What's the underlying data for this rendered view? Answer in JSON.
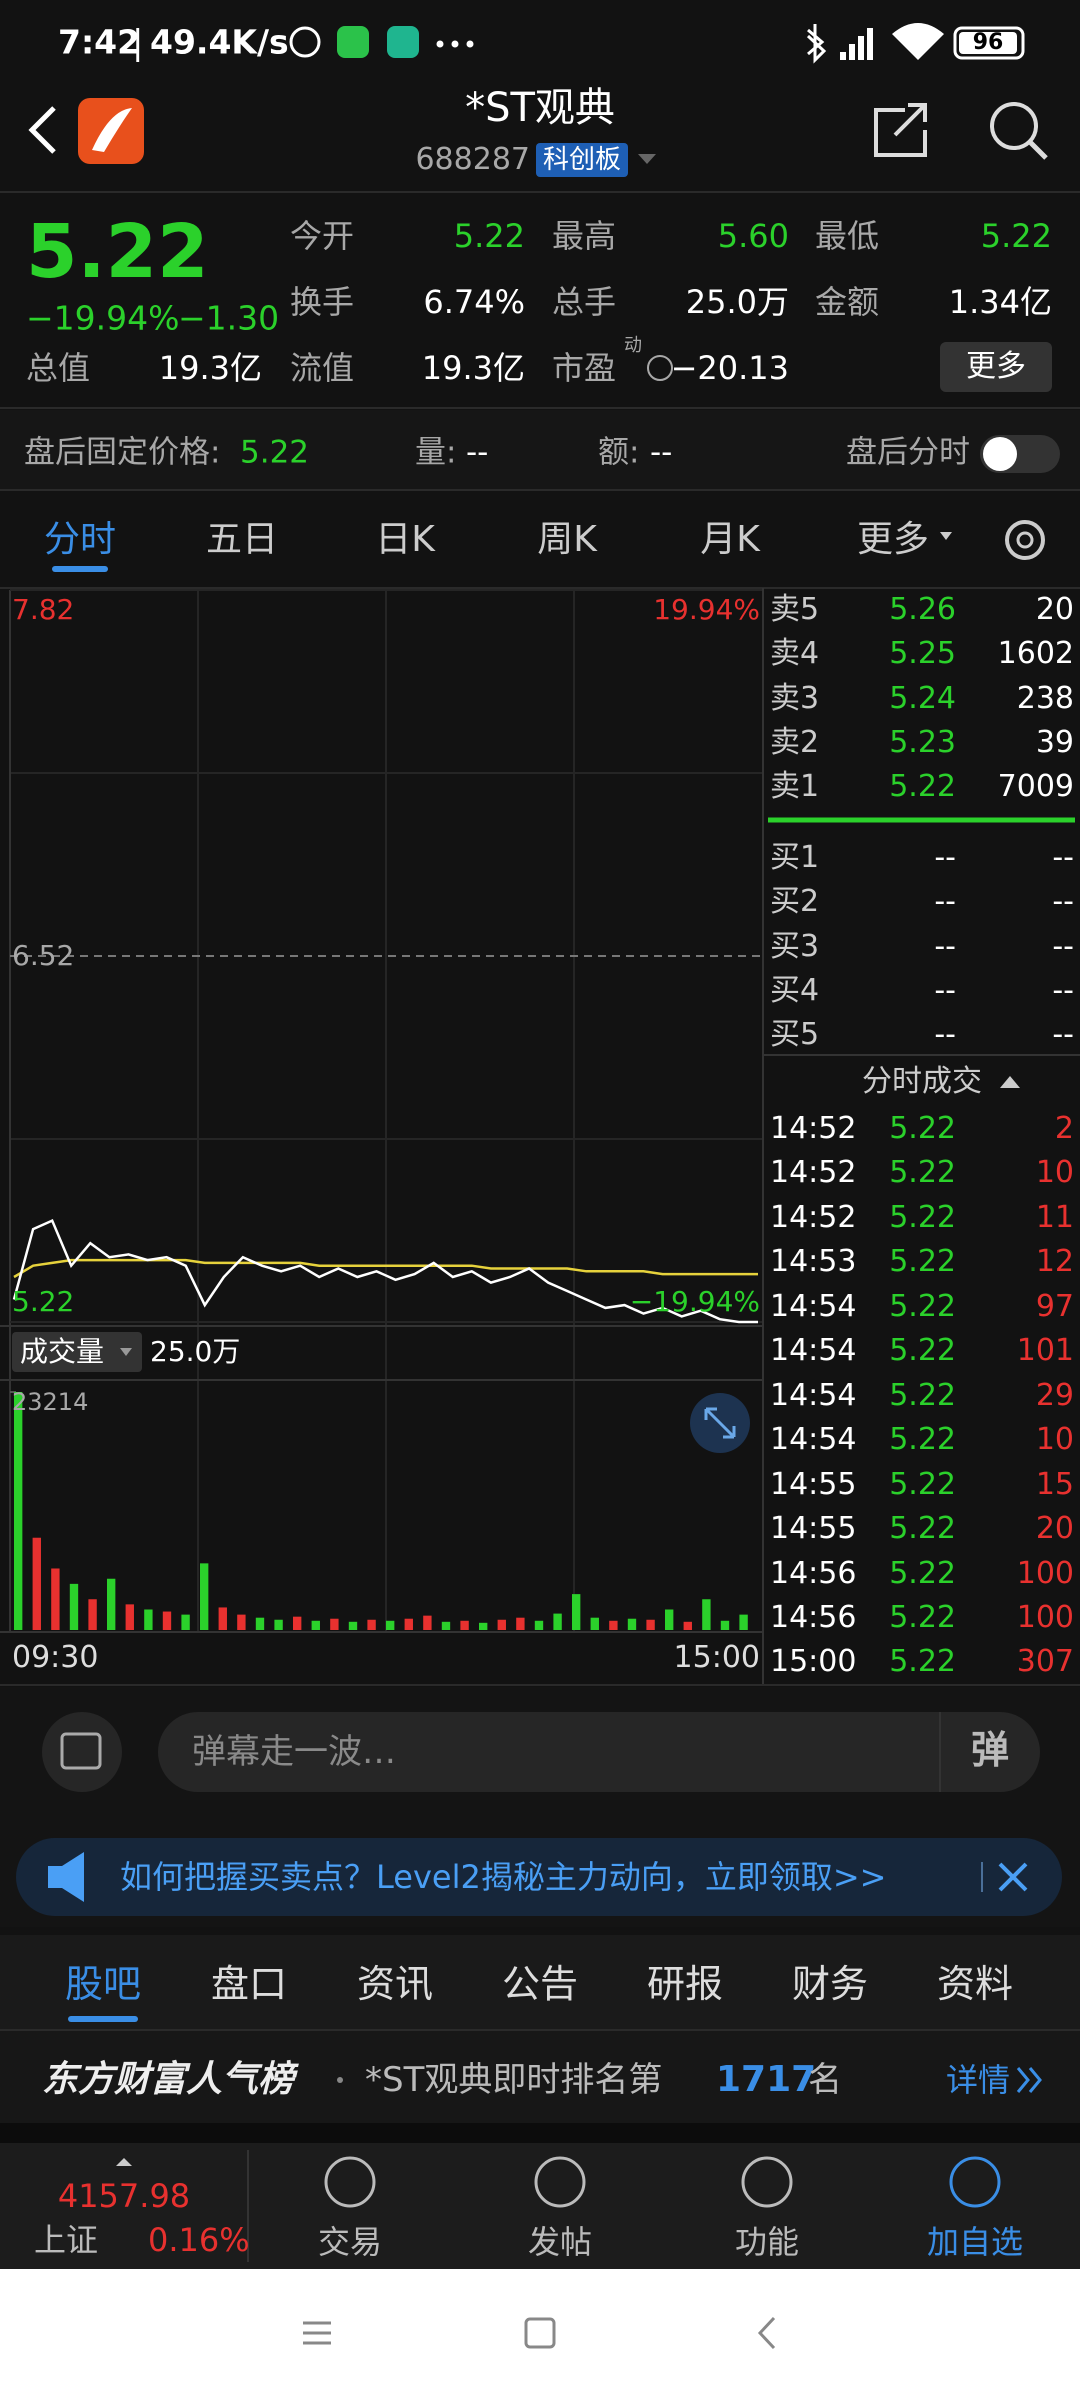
{
  "status_bar": {
    "time": "7:42",
    "speed": "49.4K/s",
    "battery": "96"
  },
  "header": {
    "title": "*ST观典",
    "code": "688287",
    "board": "科创板"
  },
  "quote": {
    "price": "5.22",
    "change_pct": "−19.94%",
    "change": "−1.30",
    "fields": [
      {
        "label": "今开",
        "value": "5.22"
      },
      {
        "label": "最高",
        "value": "5.60"
      },
      {
        "label": "最低",
        "value": "5.22"
      },
      {
        "label": "换手",
        "value": "6.74%"
      },
      {
        "label": "总手",
        "value": "25.0万"
      },
      {
        "label": "金额",
        "value": "1.34亿"
      },
      {
        "label": "总值",
        "value": "19.3亿"
      },
      {
        "label": "流值",
        "value": "19.3亿"
      },
      {
        "label": "市盈",
        "value": "−20.13"
      }
    ],
    "pe_superscript": "动",
    "more": "更多"
  },
  "after_hours": {
    "price_label": "盘后固定价格:",
    "price": "5.22",
    "volume_label": "量:",
    "volume": "--",
    "amount_label": "额:",
    "amount": "--",
    "toggle_label": "盘后分时"
  },
  "chart_tabs": [
    "分时",
    "五日",
    "日K",
    "周K",
    "月K",
    "更多"
  ],
  "chart_data": [
    {
      "type": "line",
      "ylim": [
        5.22,
        7.82
      ],
      "yticks": [
        5.22,
        6.52,
        7.82
      ],
      "pct_top": "19.94%",
      "pct_bottom": "−19.94%",
      "price_color": "#ffffff",
      "average_color": "#e6d23c",
      "price": [
        5.3,
        5.55,
        5.58,
        5.42,
        5.5,
        5.45,
        5.46,
        5.44,
        5.45,
        5.42,
        5.28,
        5.38,
        5.45,
        5.42,
        5.4,
        5.42,
        5.38,
        5.41,
        5.38,
        5.4,
        5.37,
        5.39,
        5.43,
        5.38,
        5.4,
        5.36,
        5.38,
        5.41,
        5.36,
        5.33,
        5.3,
        5.27,
        5.28,
        5.25,
        5.27,
        5.24,
        5.26,
        5.23,
        5.22,
        5.22
      ],
      "average": [
        5.38,
        5.42,
        5.43,
        5.44,
        5.44,
        5.44,
        5.44,
        5.44,
        5.44,
        5.44,
        5.43,
        5.43,
        5.43,
        5.43,
        5.43,
        5.43,
        5.42,
        5.42,
        5.42,
        5.42,
        5.42,
        5.42,
        5.42,
        5.42,
        5.42,
        5.41,
        5.41,
        5.41,
        5.41,
        5.41,
        5.4,
        5.4,
        5.4,
        5.4,
        5.39,
        5.39,
        5.39,
        5.39,
        5.39,
        5.39
      ]
    },
    {
      "type": "bar",
      "label": "成交量",
      "total": "25.0万",
      "ylim": [
        0,
        23214
      ],
      "yticks": [
        23214
      ],
      "up_color": "#e8312f",
      "down_color": "#2bd12b",
      "x_labels": [
        "09:30",
        "15:00"
      ],
      "values": [
        23214,
        9000,
        6000,
        4500,
        3000,
        5000,
        2500,
        2000,
        1800,
        1500,
        6500,
        2200,
        1500,
        1200,
        1000,
        1300,
        900,
        1100,
        800,
        1000,
        900,
        1100,
        1400,
        800,
        900,
        700,
        1000,
        1200,
        900,
        1600,
        3500,
        1200,
        900,
        1100,
        1000,
        2000,
        800,
        3000,
        900,
        1500
      ]
    }
  ],
  "order_book": {
    "asks": [
      {
        "label": "卖5",
        "price": "5.26",
        "volume": "20"
      },
      {
        "label": "卖4",
        "price": "5.25",
        "volume": "1602"
      },
      {
        "label": "卖3",
        "price": "5.24",
        "volume": "238"
      },
      {
        "label": "卖2",
        "price": "5.23",
        "volume": "39"
      },
      {
        "label": "卖1",
        "price": "5.22",
        "volume": "7009"
      }
    ],
    "bids": [
      {
        "label": "买1",
        "price": "--",
        "volume": "--"
      },
      {
        "label": "买2",
        "price": "--",
        "volume": "--"
      },
      {
        "label": "买3",
        "price": "--",
        "volume": "--"
      },
      {
        "label": "买4",
        "price": "--",
        "volume": "--"
      },
      {
        "label": "买5",
        "price": "--",
        "volume": "--"
      }
    ]
  },
  "trades": {
    "title": "分时成交",
    "rows": [
      {
        "time": "14:52",
        "price": "5.22",
        "volume": "2"
      },
      {
        "time": "14:52",
        "price": "5.22",
        "volume": "10"
      },
      {
        "time": "14:52",
        "price": "5.22",
        "volume": "11"
      },
      {
        "time": "14:53",
        "price": "5.22",
        "volume": "12"
      },
      {
        "time": "14:54",
        "price": "5.22",
        "volume": "97"
      },
      {
        "time": "14:54",
        "price": "5.22",
        "volume": "101"
      },
      {
        "time": "14:54",
        "price": "5.22",
        "volume": "29"
      },
      {
        "time": "14:54",
        "price": "5.22",
        "volume": "10"
      },
      {
        "time": "14:55",
        "price": "5.22",
        "volume": "15"
      },
      {
        "time": "14:55",
        "price": "5.22",
        "volume": "20"
      },
      {
        "time": "14:56",
        "price": "5.22",
        "volume": "100"
      },
      {
        "time": "14:56",
        "price": "5.22",
        "volume": "100"
      },
      {
        "time": "15:00",
        "price": "5.22",
        "volume": "307"
      }
    ]
  },
  "comment": {
    "placeholder": "弹幕走一波…",
    "danmu_icon": "弹"
  },
  "banner": {
    "text": "如何把握买卖点？Level2揭秘主力动向，立即领取>>"
  },
  "section_tabs": [
    "股吧",
    "盘口",
    "资讯",
    "公告",
    "研报",
    "财务",
    "资料"
  ],
  "ranking": {
    "brand": "东方财富人气榜",
    "text": "*ST观典即时排名第",
    "rank": "1717",
    "suffix": "名",
    "details": "详情"
  },
  "bottom_nav": {
    "index_value": "4157.98",
    "index_name": "上证",
    "index_change": "0.16%",
    "items": [
      "交易",
      "发帖",
      "功能",
      "加自选"
    ]
  }
}
